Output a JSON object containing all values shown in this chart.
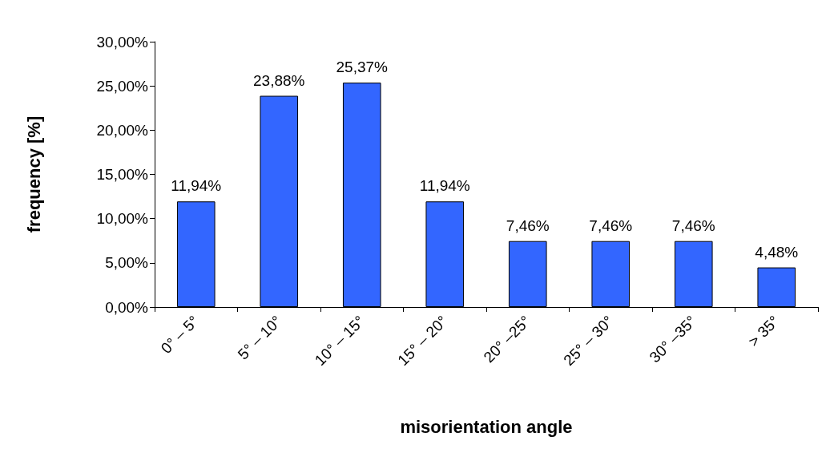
{
  "chart_data": {
    "type": "bar",
    "xlabel": "misorientation angle",
    "ylabel": "frequency [%]",
    "categories": [
      "0° – 5°",
      "5° – 10°",
      "10° – 15°",
      "15° – 20°",
      "20° –25°",
      "25° – 30°",
      "30° –35°",
      "> 35°"
    ],
    "values": [
      11.94,
      23.88,
      25.37,
      11.94,
      7.46,
      7.46,
      7.46,
      4.48
    ],
    "value_labels": [
      "11,94%",
      "23,88%",
      "25,37%",
      "11,94%",
      "7,46%",
      "7,46%",
      "7,46%",
      "4,48%"
    ],
    "color": "#3366ff",
    "ylim": [
      0,
      30
    ],
    "yticks": [
      {
        "value": 0,
        "label": "0,00%"
      },
      {
        "value": 5,
        "label": "5,00%"
      },
      {
        "value": 10,
        "label": "10,00%"
      },
      {
        "value": 15,
        "label": "15,00%"
      },
      {
        "value": 20,
        "label": "20,00%"
      },
      {
        "value": 25,
        "label": "25,00%"
      },
      {
        "value": 30,
        "label": "30,00%"
      }
    ],
    "grid": false
  }
}
